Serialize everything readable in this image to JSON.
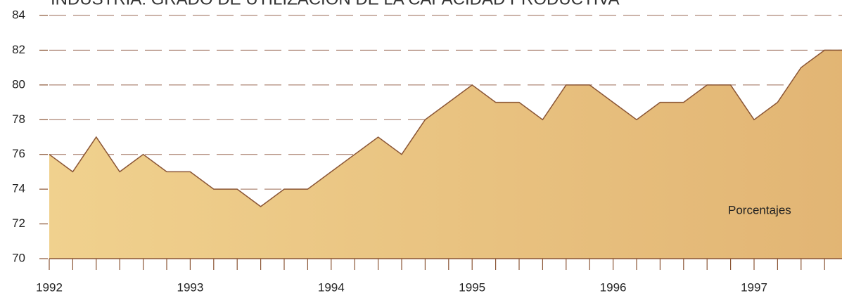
{
  "chart_data": {
    "type": "area",
    "title": "INDUSTRIA: GRADO DE UTILIZACIÓN DE LA CAPACIDAD PRODUCTIVA",
    "annotation": "Porcentajes",
    "categories": [
      "1992",
      null,
      null,
      null,
      null,
      null,
      "1993",
      null,
      null,
      null,
      null,
      null,
      "1994",
      null,
      null,
      null,
      null,
      null,
      "1995",
      null,
      null,
      null,
      null,
      null,
      "1996",
      null,
      null,
      null,
      null,
      null,
      "1997",
      null,
      null,
      null,
      null
    ],
    "values": [
      76,
      75,
      77,
      75,
      76,
      75,
      75,
      74,
      74,
      73,
      74,
      74,
      75,
      76,
      77,
      76,
      78,
      79,
      80,
      79,
      79,
      78,
      80,
      80,
      79,
      78,
      79,
      79,
      80,
      80,
      78,
      79,
      81,
      82,
      82
    ],
    "color": "#e6bb78",
    "line_color": "#8a5535",
    "ylim": [
      70,
      84
    ],
    "yticks": [
      70,
      72,
      74,
      76,
      78,
      80,
      82,
      84
    ],
    "grid": true
  }
}
